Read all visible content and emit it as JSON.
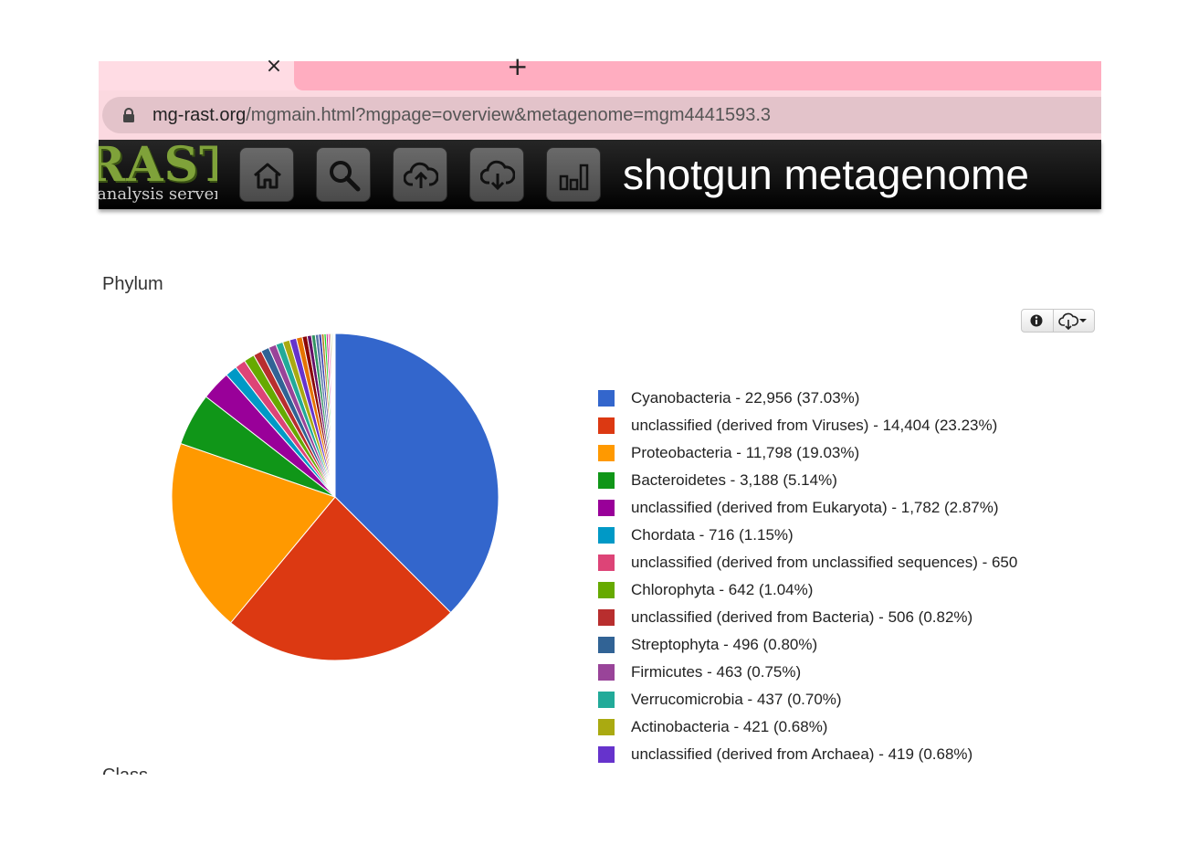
{
  "browser": {
    "tab_close": "×",
    "tab_new": "+",
    "url_host": "mg-rast.org",
    "url_rest": "/mgmain.html?mgpage=overview&metagenome=mgm4441593.3"
  },
  "header": {
    "logo_big": "RAST",
    "logo_small": "analysis server",
    "title": "shotgun metagenome",
    "nav": [
      "home-icon",
      "search-icon",
      "upload-icon",
      "download-icon",
      "analysis-icon"
    ]
  },
  "section": {
    "title": "Phylum",
    "next_title": "Class"
  },
  "toolbar_icons": [
    "info-icon",
    "cloud-download-icon",
    "caret-down-icon"
  ],
  "chart_data": {
    "type": "pie",
    "title": "Phylum",
    "series": [
      {
        "label": "Cyanobacteria",
        "value": 22956,
        "percent": "37.03%",
        "value_text": "22,956",
        "color": "#3366cc"
      },
      {
        "label": "unclassified (derived from Viruses)",
        "value": 14404,
        "percent": "23.23%",
        "value_text": "14,404",
        "color": "#dc3912"
      },
      {
        "label": "Proteobacteria",
        "value": 11798,
        "percent": "19.03%",
        "value_text": "11,798",
        "color": "#ff9900"
      },
      {
        "label": "Bacteroidetes",
        "value": 3188,
        "percent": "5.14%",
        "value_text": "3,188",
        "color": "#109618"
      },
      {
        "label": "unclassified (derived from Eukaryota)",
        "value": 1782,
        "percent": "2.87%",
        "value_text": "1,782",
        "color": "#990099"
      },
      {
        "label": "Chordata",
        "value": 716,
        "percent": "1.15%",
        "value_text": "716",
        "color": "#0099c6"
      },
      {
        "label": "unclassified (derived from unclassified sequences)",
        "value": 650,
        "percent": "",
        "value_text": "650",
        "color": "#dd4477"
      },
      {
        "label": "Chlorophyta",
        "value": 642,
        "percent": "1.04%",
        "value_text": "642",
        "color": "#66aa00"
      },
      {
        "label": "unclassified (derived from Bacteria)",
        "value": 506,
        "percent": "0.82%",
        "value_text": "506",
        "color": "#b82e2e"
      },
      {
        "label": "Streptophyta",
        "value": 496,
        "percent": "0.80%",
        "value_text": "496",
        "color": "#316395"
      },
      {
        "label": "Firmicutes",
        "value": 463,
        "percent": "0.75%",
        "value_text": "463",
        "color": "#994499"
      },
      {
        "label": "Verrucomicrobia",
        "value": 437,
        "percent": "0.70%",
        "value_text": "437",
        "color": "#22aa99"
      },
      {
        "label": "Actinobacteria",
        "value": 421,
        "percent": "0.68%",
        "value_text": "421",
        "color": "#aaaa11"
      },
      {
        "label": "unclassified (derived from Archaea)",
        "value": 419,
        "percent": "0.68%",
        "value_text": "419",
        "color": "#6633cc"
      }
    ],
    "other_slices": {
      "values": [
        360,
        300,
        260,
        230,
        200,
        175,
        150,
        130,
        110,
        95,
        80,
        70,
        60,
        50,
        40,
        30
      ],
      "colors": [
        "#e67300",
        "#8b0707",
        "#651067",
        "#329262",
        "#5574a6",
        "#3b3eac",
        "#b77322",
        "#16d620",
        "#b91383",
        "#f4359e",
        "#9c5935",
        "#a9c413",
        "#2a778d",
        "#668d1c",
        "#bea413",
        "#0c5922"
      ]
    },
    "legend_position": "right"
  }
}
